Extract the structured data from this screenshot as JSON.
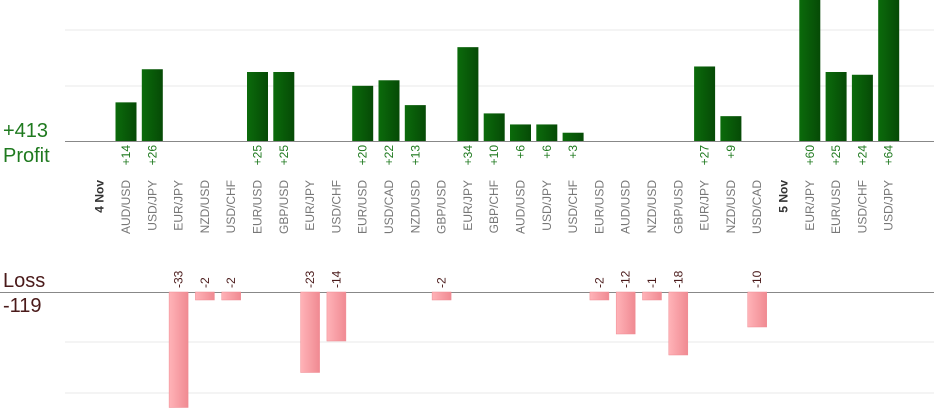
{
  "summary": {
    "profit_total": "+413",
    "profit_label": "Profit",
    "loss_label": "Loss",
    "loss_total": "-119"
  },
  "colors": {
    "profit_bar": "#0b6b0b",
    "profit_bar_dark": "#064a06",
    "profit_text": "#1f7a1f",
    "loss_bar": "#ffb3b8",
    "loss_bar_edge": "#f08a92",
    "loss_text": "#4a1a1a",
    "date_text": "#333333",
    "pair_text": "#777777",
    "grid": "#e8e8e8",
    "axis": "#888888"
  },
  "chart_data": {
    "type": "bar",
    "orientation": "vertical",
    "description_units": "pips",
    "days": [
      {
        "date": "4 Nov",
        "trades": [
          {
            "pair": "AUD/USD",
            "value": 14,
            "label": "+14"
          },
          {
            "pair": "USD/JPY",
            "value": 26,
            "label": "+26"
          },
          {
            "pair": "EUR/JPY",
            "value": -33,
            "label": "-33"
          },
          {
            "pair": "NZD/USD",
            "value": -2,
            "label": "-2"
          },
          {
            "pair": "USD/CHF",
            "value": -2,
            "label": "-2"
          },
          {
            "pair": "EUR/USD",
            "value": 25,
            "label": "+25"
          },
          {
            "pair": "GBP/USD",
            "value": 25,
            "label": "+25"
          },
          {
            "pair": "EUR/JPY",
            "value": -23,
            "label": "-23"
          },
          {
            "pair": "USD/CHF",
            "value": -14,
            "label": "-14"
          },
          {
            "pair": "EUR/USD",
            "value": 20,
            "label": "+20"
          },
          {
            "pair": "USD/CAD",
            "value": 22,
            "label": "+22"
          },
          {
            "pair": "NZD/USD",
            "value": 13,
            "label": "+13"
          },
          {
            "pair": "GBP/USD",
            "value": -2,
            "label": "-2"
          },
          {
            "pair": "EUR/JPY",
            "value": 34,
            "label": "+34"
          },
          {
            "pair": "GBP/CHF",
            "value": 10,
            "label": "+10"
          },
          {
            "pair": "AUD/USD",
            "value": 6,
            "label": "+6"
          },
          {
            "pair": "USD/JPY",
            "value": 6,
            "label": "+6"
          },
          {
            "pair": "USD/CHF",
            "value": 3,
            "label": "+3"
          },
          {
            "pair": "EUR/USD",
            "value": -2,
            "label": "-2"
          },
          {
            "pair": "AUD/USD",
            "value": -12,
            "label": "-12"
          },
          {
            "pair": "NZD/USD",
            "value": -1,
            "label": "-1"
          },
          {
            "pair": "GBP/USD",
            "value": -18,
            "label": "-18"
          },
          {
            "pair": "EUR/JPY",
            "value": 27,
            "label": "+27"
          },
          {
            "pair": "NZD/USD",
            "value": 9,
            "label": "+9"
          },
          {
            "pair": "USD/CAD",
            "value": -10,
            "label": "-10"
          }
        ]
      },
      {
        "date": "5 Nov",
        "trades": [
          {
            "pair": "EUR/JPY",
            "value": 60,
            "label": "+60"
          },
          {
            "pair": "EUR/USD",
            "value": 25,
            "label": "+25"
          },
          {
            "pair": "USD/CHF",
            "value": 24,
            "label": "+24"
          },
          {
            "pair": "USD/JPY",
            "value": 64,
            "label": "+64"
          }
        ]
      }
    ],
    "title": "",
    "xlabel": "",
    "ylabel": "",
    "grid": true,
    "legend": "none"
  }
}
